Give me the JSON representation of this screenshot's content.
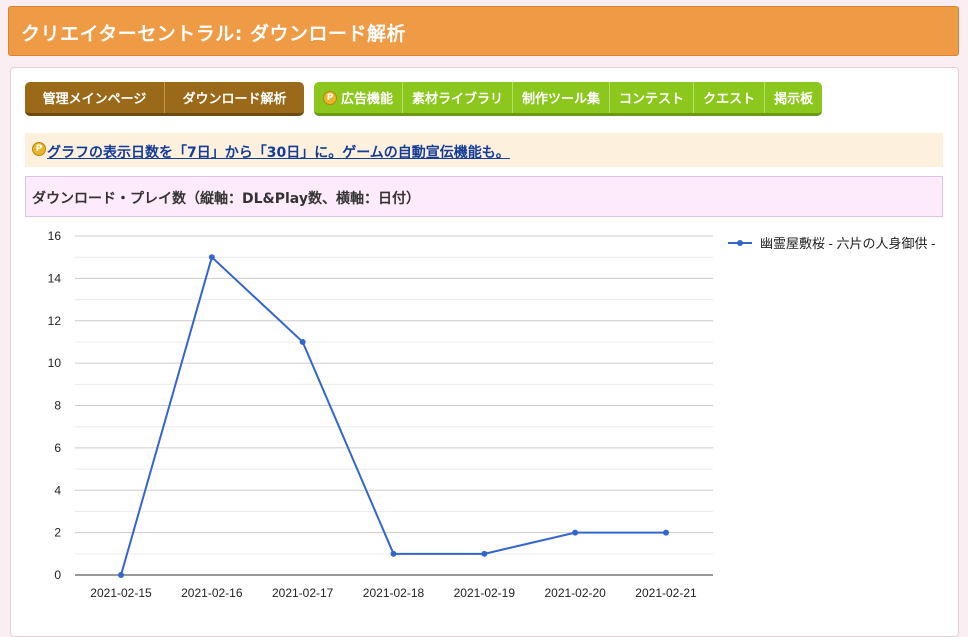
{
  "header": {
    "title": "クリエイターセントラル: ダウンロード解析"
  },
  "nav_primary": [
    {
      "label": "管理メインページ"
    },
    {
      "label": "ダウンロード解析"
    }
  ],
  "nav_secondary": [
    {
      "label": "広告機能",
      "icon": "coin-icon"
    },
    {
      "label": "素材ライブラリ"
    },
    {
      "label": "制作ツール集"
    },
    {
      "label": "コンテスト"
    },
    {
      "label": "クエスト"
    },
    {
      "label": "掲示板"
    }
  ],
  "notice": {
    "text": "グラフの表示日数を「7日」から「30日」に。ゲームの自動宣伝機能も。",
    "icon": "coin-icon"
  },
  "chart_section": {
    "title": "ダウンロード・プレイ数（縦軸：DL&Play数、横軸：日付）"
  },
  "colors": {
    "header_bg": "#ef9a45",
    "nav_primary_bg": "#9a6a1a",
    "nav_secondary_bg": "#8cc71e",
    "series_line": "#3366cc"
  },
  "chart_data": {
    "type": "line",
    "title": "",
    "xlabel": "",
    "ylabel": "",
    "categories": [
      "2021-02-15",
      "2021-02-16",
      "2021-02-17",
      "2021-02-18",
      "2021-02-19",
      "2021-02-20",
      "2021-02-21"
    ],
    "series": [
      {
        "name": "幽霊屋敷桜 - 六片の人身御供 -",
        "values": [
          0,
          15,
          11,
          1,
          1,
          2,
          2
        ]
      }
    ],
    "ylim": [
      0,
      16
    ],
    "yticks": [
      0,
      2,
      4,
      6,
      8,
      10,
      12,
      14,
      16
    ],
    "grid": true,
    "legend": "right"
  }
}
